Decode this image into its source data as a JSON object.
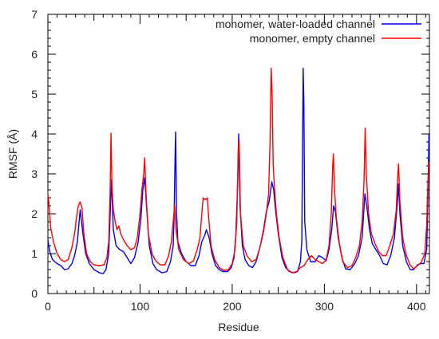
{
  "chart_data": {
    "type": "line",
    "title": "",
    "xlabel": "Residue",
    "ylabel": "RMSF (Å)",
    "xlim": [
      0,
      414
    ],
    "ylim": [
      0,
      7
    ],
    "xticks": [
      0,
      100,
      200,
      300,
      400
    ],
    "yticks": [
      0,
      1,
      2,
      3,
      4,
      5,
      6,
      7
    ],
    "xtick_labels": [
      "0",
      "100",
      "200",
      "300",
      "400"
    ],
    "ytick_labels": [
      "0",
      "1",
      "2",
      "3",
      "4",
      "5",
      "6",
      "7"
    ],
    "grid": false,
    "legend_position": "top-right",
    "series": [
      {
        "name": "monomer, water-loaded channel",
        "color": "#0000ee",
        "points": [
          [
            0,
            1.35
          ],
          [
            2,
            1.05
          ],
          [
            5,
            0.85
          ],
          [
            10,
            0.75
          ],
          [
            14,
            0.7
          ],
          [
            18,
            0.6
          ],
          [
            22,
            0.62
          ],
          [
            26,
            0.75
          ],
          [
            29,
            0.95
          ],
          [
            32,
            1.3
          ],
          [
            35,
            2.1
          ],
          [
            38,
            1.5
          ],
          [
            41,
            1.0
          ],
          [
            45,
            0.75
          ],
          [
            50,
            0.6
          ],
          [
            56,
            0.52
          ],
          [
            60,
            0.5
          ],
          [
            63,
            0.6
          ],
          [
            66,
            1.0
          ],
          [
            68,
            2.25
          ],
          [
            69,
            2.85
          ],
          [
            71,
            1.6
          ],
          [
            74,
            1.2
          ],
          [
            78,
            1.1
          ],
          [
            82,
            1.05
          ],
          [
            86,
            0.9
          ],
          [
            90,
            0.75
          ],
          [
            94,
            0.9
          ],
          [
            98,
            1.3
          ],
          [
            101,
            1.9
          ],
          [
            103,
            2.6
          ],
          [
            105,
            2.9
          ],
          [
            107,
            2.2
          ],
          [
            110,
            1.2
          ],
          [
            114,
            0.75
          ],
          [
            118,
            0.6
          ],
          [
            124,
            0.52
          ],
          [
            129,
            0.55
          ],
          [
            133,
            0.8
          ],
          [
            136,
            1.2
          ],
          [
            137,
            2.0
          ],
          [
            138,
            3.4
          ],
          [
            138.6,
            4.05
          ],
          [
            139.5,
            2.1
          ],
          [
            141,
            1.3
          ],
          [
            145,
            1.0
          ],
          [
            150,
            0.8
          ],
          [
            155,
            0.7
          ],
          [
            160,
            0.7
          ],
          [
            164,
            0.95
          ],
          [
            167,
            1.3
          ],
          [
            170,
            1.45
          ],
          [
            172,
            1.6
          ],
          [
            175,
            1.4
          ],
          [
            178,
            1.0
          ],
          [
            182,
            0.7
          ],
          [
            186,
            0.6
          ],
          [
            190,
            0.55
          ],
          [
            195,
            0.55
          ],
          [
            199,
            0.65
          ],
          [
            202,
            0.9
          ],
          [
            204,
            1.5
          ],
          [
            206,
            2.8
          ],
          [
            207,
            4.0
          ],
          [
            208.5,
            2.2
          ],
          [
            211,
            1.2
          ],
          [
            214,
            0.85
          ],
          [
            218,
            0.7
          ],
          [
            222,
            0.65
          ],
          [
            226,
            0.8
          ],
          [
            230,
            1.15
          ],
          [
            234,
            1.6
          ],
          [
            237,
            2.05
          ],
          [
            240,
            2.3
          ],
          [
            243,
            2.8
          ],
          [
            245,
            2.6
          ],
          [
            247,
            2.1
          ],
          [
            250,
            1.5
          ],
          [
            254,
            0.9
          ],
          [
            258,
            0.65
          ],
          [
            262,
            0.55
          ],
          [
            267,
            0.52
          ],
          [
            271,
            0.55
          ],
          [
            274,
            0.8
          ],
          [
            275.5,
            1.3
          ],
          [
            276.3,
            3.5
          ],
          [
            277,
            5.65
          ],
          [
            277.8,
            4.7
          ],
          [
            278.7,
            1.8
          ],
          [
            281,
            1.1
          ],
          [
            285,
            0.8
          ],
          [
            290,
            0.8
          ],
          [
            294,
            0.95
          ],
          [
            298,
            0.9
          ],
          [
            302,
            0.82
          ],
          [
            305,
            1.1
          ],
          [
            308,
            1.6
          ],
          [
            310,
            2.2
          ],
          [
            312,
            2.05
          ],
          [
            315,
            1.4
          ],
          [
            319,
            0.9
          ],
          [
            323,
            0.62
          ],
          [
            328,
            0.6
          ],
          [
            333,
            0.75
          ],
          [
            337,
            0.95
          ],
          [
            341,
            1.4
          ],
          [
            344,
            2.5
          ],
          [
            346,
            2.2
          ],
          [
            349,
            1.6
          ],
          [
            352,
            1.25
          ],
          [
            356,
            1.1
          ],
          [
            360,
            0.95
          ],
          [
            364,
            0.75
          ],
          [
            368,
            0.72
          ],
          [
            372,
            0.95
          ],
          [
            376,
            1.4
          ],
          [
            379,
            2.2
          ],
          [
            380.5,
            2.75
          ],
          [
            382,
            2.0
          ],
          [
            385,
            1.2
          ],
          [
            389,
            0.8
          ],
          [
            393,
            0.6
          ],
          [
            397,
            0.6
          ],
          [
            401,
            0.72
          ],
          [
            405,
            0.75
          ],
          [
            408,
            0.75
          ],
          [
            411,
            1.1
          ],
          [
            412.5,
            2.5
          ],
          [
            413.5,
            4.02
          ]
        ]
      },
      {
        "name": "monomer, empty channel",
        "color": "#ff0000",
        "points": [
          [
            0,
            2.5
          ],
          [
            1,
            2.3
          ],
          [
            3,
            1.65
          ],
          [
            6,
            1.3
          ],
          [
            10,
            1.0
          ],
          [
            14,
            0.85
          ],
          [
            18,
            0.8
          ],
          [
            22,
            0.85
          ],
          [
            26,
            1.15
          ],
          [
            29,
            1.5
          ],
          [
            31,
            1.9
          ],
          [
            33,
            2.2
          ],
          [
            35,
            2.3
          ],
          [
            37,
            2.15
          ],
          [
            39,
            1.5
          ],
          [
            42,
            1.0
          ],
          [
            46,
            0.8
          ],
          [
            50,
            0.72
          ],
          [
            56,
            0.7
          ],
          [
            61,
            0.72
          ],
          [
            64,
            0.9
          ],
          [
            66,
            1.3
          ],
          [
            67.5,
            2.5
          ],
          [
            68.5,
            4.02
          ],
          [
            69.5,
            2.7
          ],
          [
            71,
            2.1
          ],
          [
            73,
            1.8
          ],
          [
            75,
            1.6
          ],
          [
            77,
            1.7
          ],
          [
            79,
            1.5
          ],
          [
            82,
            1.35
          ],
          [
            86,
            1.2
          ],
          [
            90,
            1.1
          ],
          [
            94,
            1.15
          ],
          [
            97,
            1.4
          ],
          [
            100,
            2.0
          ],
          [
            102,
            2.6
          ],
          [
            104,
            3.0
          ],
          [
            105,
            3.4
          ],
          [
            106.5,
            2.5
          ],
          [
            109,
            1.5
          ],
          [
            113,
            1.0
          ],
          [
            117,
            0.82
          ],
          [
            122,
            0.72
          ],
          [
            127,
            0.72
          ],
          [
            131,
            0.95
          ],
          [
            134,
            1.3
          ],
          [
            136,
            1.8
          ],
          [
            137.5,
            2.2
          ],
          [
            139,
            1.6
          ],
          [
            142,
            1.1
          ],
          [
            147,
            0.85
          ],
          [
            153,
            0.75
          ],
          [
            158,
            0.82
          ],
          [
            162,
            1.1
          ],
          [
            165,
            1.4
          ],
          [
            167,
            2.0
          ],
          [
            168.5,
            2.4
          ],
          [
            171,
            2.35
          ],
          [
            173,
            2.4
          ],
          [
            174.5,
            1.9
          ],
          [
            177,
            1.2
          ],
          [
            181,
            0.85
          ],
          [
            186,
            0.65
          ],
          [
            191,
            0.58
          ],
          [
            196,
            0.6
          ],
          [
            200,
            0.75
          ],
          [
            203,
            1.1
          ],
          [
            205,
            1.8
          ],
          [
            206.5,
            3.6
          ],
          [
            207.5,
            3.85
          ],
          [
            209,
            2.0
          ],
          [
            212,
            1.2
          ],
          [
            216,
            0.95
          ],
          [
            221,
            0.8
          ],
          [
            226,
            0.85
          ],
          [
            230,
            1.15
          ],
          [
            234,
            1.55
          ],
          [
            237,
            2.0
          ],
          [
            239.5,
            2.5
          ],
          [
            241,
            3.8
          ],
          [
            242.3,
            5.65
          ],
          [
            243.3,
            5.0
          ],
          [
            244.5,
            3.2
          ],
          [
            246,
            2.6
          ],
          [
            248,
            2.0
          ],
          [
            251,
            1.4
          ],
          [
            255,
            0.9
          ],
          [
            260,
            0.6
          ],
          [
            265,
            0.52
          ],
          [
            270,
            0.55
          ],
          [
            274,
            0.65
          ],
          [
            278,
            0.7
          ],
          [
            282,
            0.85
          ],
          [
            286,
            0.95
          ],
          [
            290,
            0.85
          ],
          [
            294,
            0.8
          ],
          [
            298,
            0.75
          ],
          [
            302,
            0.85
          ],
          [
            305,
            1.2
          ],
          [
            307.5,
            2.0
          ],
          [
            309,
            3.2
          ],
          [
            309.8,
            3.5
          ],
          [
            311,
            2.6
          ],
          [
            313,
            1.9
          ],
          [
            316,
            1.3
          ],
          [
            320,
            0.8
          ],
          [
            325,
            0.65
          ],
          [
            330,
            0.7
          ],
          [
            334,
            0.9
          ],
          [
            338,
            1.2
          ],
          [
            341,
            1.8
          ],
          [
            343,
            2.8
          ],
          [
            344.3,
            4.15
          ],
          [
            345.5,
            3.0
          ],
          [
            348,
            2.0
          ],
          [
            351,
            1.5
          ],
          [
            355,
            1.25
          ],
          [
            359,
            1.05
          ],
          [
            363,
            0.95
          ],
          [
            367,
            0.95
          ],
          [
            371,
            1.2
          ],
          [
            375,
            1.5
          ],
          [
            378,
            2.1
          ],
          [
            379.5,
            2.9
          ],
          [
            380.5,
            3.25
          ],
          [
            382,
            2.3
          ],
          [
            385,
            1.4
          ],
          [
            389,
            0.95
          ],
          [
            393,
            0.72
          ],
          [
            397,
            0.62
          ],
          [
            401,
            0.7
          ],
          [
            405,
            0.78
          ],
          [
            409,
            1.0
          ],
          [
            411,
            1.7
          ],
          [
            412.5,
            2.9
          ],
          [
            413.5,
            3.3
          ]
        ]
      }
    ]
  }
}
